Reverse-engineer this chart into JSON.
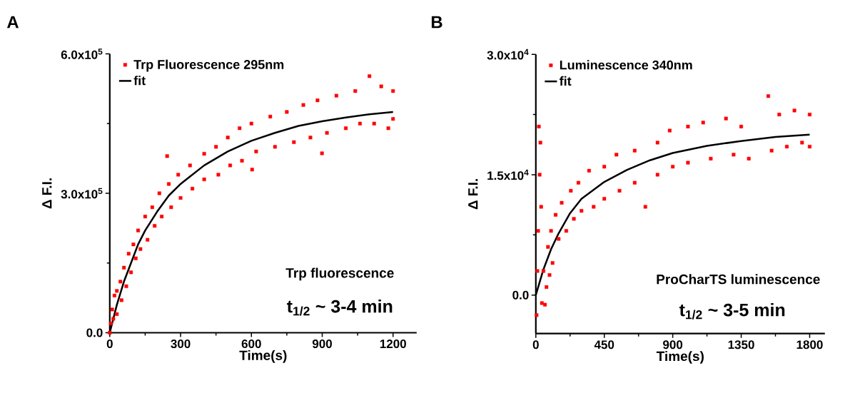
{
  "chart_data": [
    {
      "type": "scatter",
      "title": "A",
      "xlabel": "Time(s)",
      "ylabel": "Δ F.I.",
      "xlim": [
        0,
        1300
      ],
      "ylim": [
        0,
        600000
      ],
      "xticks": [
        0,
        300,
        600,
        900,
        1200
      ],
      "yticks": [
        {
          "value": 0,
          "label": "0.0"
        },
        {
          "value": 300000,
          "label": "3.0x10$^{5}$"
        },
        {
          "value": 600000,
          "label": "6.0x10$^{5}$"
        }
      ],
      "legend": "top left",
      "annotations": [
        "Trp fluorescence",
        "t$_{1/2}$ ~ 3-4 min"
      ],
      "series": [
        {
          "name": "Trp Fluorescence 295nm",
          "color": "#ff0000",
          "marker": "square",
          "x": [
            0,
            5,
            10,
            15,
            20,
            30,
            30,
            45,
            50,
            60,
            70,
            80,
            90,
            100,
            110,
            120,
            130,
            150,
            160,
            180,
            190,
            210,
            220,
            243,
            250,
            260,
            290,
            300,
            340,
            350,
            400,
            400,
            450,
            460,
            500,
            510,
            550,
            560,
            603,
            600,
            620,
            680,
            700,
            750,
            780,
            820,
            850,
            880,
            899,
            920,
            960,
            1000,
            1040,
            1060,
            1100,
            1120,
            1150,
            1180,
            1200,
            1200
          ],
          "values": [
            0,
            20000,
            50000,
            30000,
            80000,
            90000,
            40000,
            110000,
            70000,
            140000,
            100000,
            170000,
            130000,
            190000,
            160000,
            220000,
            180000,
            250000,
            200000,
            270000,
            230000,
            300000,
            250000,
            380000,
            320000,
            270000,
            340000,
            290000,
            360000,
            310000,
            385000,
            330000,
            400000,
            340000,
            420000,
            360000,
            440000,
            370000,
            351000,
            450000,
            390000,
            465000,
            400000,
            475000,
            410000,
            490000,
            420000,
            500000,
            386000,
            430000,
            510000,
            440000,
            520000,
            450000,
            552000,
            450000,
            530000,
            440000,
            520000,
            460000
          ]
        },
        {
          "name": "fit",
          "type": "line",
          "color": "#000000",
          "x": [
            0,
            30,
            60,
            90,
            120,
            150,
            200,
            250,
            300,
            400,
            500,
            600,
            700,
            800,
            900,
            1000,
            1100,
            1200
          ],
          "values": [
            0,
            60000,
            110000,
            150000,
            190000,
            220000,
            260000,
            295000,
            320000,
            360000,
            390000,
            413000,
            430000,
            445000,
            455000,
            463000,
            470000,
            475000
          ]
        }
      ]
    },
    {
      "type": "scatter",
      "title": "B",
      "xlabel": "Time(s)",
      "ylabel": "Δ F.I.",
      "xlim": [
        0,
        1900
      ],
      "ylim": [
        -4800,
        30000
      ],
      "xticks": [
        0,
        450,
        900,
        1350,
        1800
      ],
      "yticks": [
        {
          "value": 0,
          "label": "0.0"
        },
        {
          "value": 15000,
          "label": "1.5x10$^{4}$"
        },
        {
          "value": 30000,
          "label": "3.0x10$^{4}$"
        }
      ],
      "legend": "top left",
      "annotations": [
        "ProCharTS luminescence",
        "t$_{1/2}$ ~ 3-5 min"
      ],
      "series": [
        {
          "name": "Luminescence 340nm",
          "color": "#ff0000",
          "marker": "square",
          "x": [
            5,
            10,
            15,
            20,
            25,
            30,
            35,
            40,
            50,
            60,
            70,
            80,
            90,
            100,
            110,
            130,
            150,
            170,
            200,
            230,
            250,
            280,
            300,
            350,
            380,
            450,
            450,
            530,
            550,
            650,
            650,
            720,
            800,
            800,
            880,
            900,
            1000,
            1000,
            1100,
            1150,
            1250,
            1300,
            1350,
            1400,
            1528,
            1550,
            1600,
            1650,
            1700,
            1750,
            1800,
            1800
          ],
          "values": [
            -2500,
            3000,
            8000,
            21000,
            15000,
            19000,
            11000,
            -1000,
            3000,
            -1200,
            1000,
            6000,
            2500,
            8000,
            4000,
            10000,
            7000,
            11500,
            8000,
            13000,
            9500,
            14000,
            10500,
            15500,
            11000,
            16000,
            12000,
            17500,
            13000,
            18000,
            14000,
            11000,
            19000,
            15000,
            20500,
            16000,
            21000,
            16500,
            21500,
            17000,
            22000,
            17500,
            21000,
            17000,
            24800,
            18000,
            22500,
            18500,
            23000,
            19000,
            22500,
            18500
          ]
        },
        {
          "name": "fit",
          "type": "line",
          "color": "#000000",
          "x": [
            0,
            50,
            100,
            150,
            225,
            300,
            450,
            600,
            750,
            900,
            1125,
            1350,
            1575,
            1800
          ],
          "values": [
            0,
            3200,
            5700,
            7700,
            10200,
            12000,
            14100,
            15600,
            16800,
            17700,
            18600,
            19200,
            19700,
            20000
          ]
        }
      ]
    }
  ]
}
